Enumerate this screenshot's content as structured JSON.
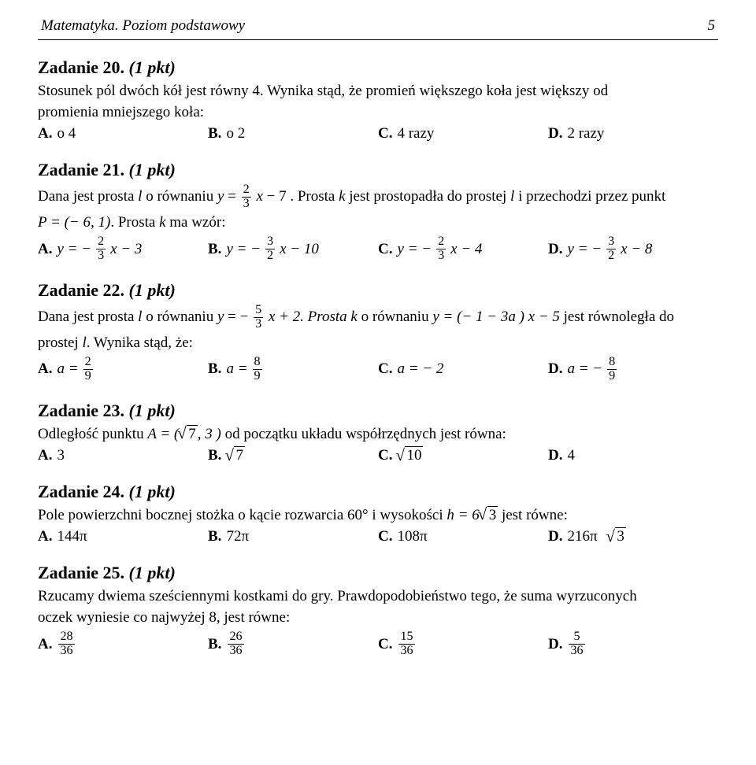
{
  "page": {
    "header_title": "Matematyka. Poziom podstawowy",
    "page_number": "5"
  },
  "tasks": {
    "t20": {
      "title_prefix": "Zadanie 20.",
      "pkt": "(1 pkt)",
      "body_l1": "Stosunek pól dwóch kół jest równy 4. Wynika stąd, że promień większego koła jest większy od",
      "body_l2": "promienia mniejszego koła:",
      "optA": "o 4",
      "optB": "o 2",
      "optC": "4 razy",
      "optD": "2 razy"
    },
    "t21": {
      "title_prefix": "Zadanie 21.",
      "pkt": "(1 pkt)",
      "intro_a": "Dana jest prosta ",
      "intro_b": " o równaniu ",
      "intro_c": ". Prosta ",
      "intro_d": " jest prostopadła do prostej ",
      "intro_e": " i przechodzi przez punkt",
      "pline_a": ". Prosta ",
      "pline_b": " ma wzór:",
      "frac23_num": "2",
      "frac23_den": "3",
      "const7": " − 7",
      "P_label": "P = (− 6, 1)",
      "optA_lhs": "y = − ",
      "optA_n": "2",
      "optA_d": "3",
      "optA_tail": " x − 3",
      "optB_lhs": "y = − ",
      "optB_n": "3",
      "optB_d": "2",
      "optB_tail": " x − 10",
      "optC_lhs": "y = − ",
      "optC_n": "2",
      "optC_d": "3",
      "optC_tail": " x − 4",
      "optD_lhs": "y = − ",
      "optD_n": "3",
      "optD_d": "2",
      "optD_tail": " x − 8"
    },
    "t22": {
      "title_prefix": "Zadanie 22.",
      "pkt": "(1 pkt)",
      "intro_a": "Dana jest prosta ",
      "intro_b": " o równaniu ",
      "fr_n": "5",
      "fr_d": "3",
      "intro_c": " x + 2. Prosta ",
      "intro_d": " o równaniu ",
      "intro_e": " jest równoległa do",
      "kexpr": "y = (− 1 − 3a ) x − 5",
      "line2_a": "prostej ",
      "line2_b": ". Wynika stąd, że:",
      "optA_lhs": "a = ",
      "optA_n": "2",
      "optA_d": "9",
      "optB_lhs": "a = ",
      "optB_n": "8",
      "optB_d": "9",
      "optC": "a = − 2",
      "optD_lhs": "a = − ",
      "optD_n": "8",
      "optD_d": "9"
    },
    "t23": {
      "title_prefix": "Zadanie 23.",
      "pkt": "(1 pkt)",
      "intro_a": "Odległość punktu ",
      "intro_b": " od początku układu współrzędnych jest równa:",
      "A_label": "A = (",
      "A_rad": "7",
      "A_tail": ", 3 )",
      "optA": "3",
      "optB_rad": "7",
      "optC_rad": "10",
      "optD": "4"
    },
    "t24": {
      "title_prefix": "Zadanie 24.",
      "pkt": "(1 pkt)",
      "intro_a": "Pole powierzchni bocznej stożka o kącie rozwarcia 60° i wysokości ",
      "h_expr": "h = 6",
      "h_rad": "3",
      "intro_b": " jest równe:",
      "optA": "144π",
      "optB": "72π",
      "optC": "108π",
      "optD_val": "216π",
      "optD_rad": "3"
    },
    "t25": {
      "title_prefix": "Zadanie 25.",
      "pkt": "(1 pkt)",
      "body_l1": "Rzucamy dwiema sześciennymi kostkami do gry. Prawdopodobieństwo tego, że suma wyrzuconych",
      "body_l2": "oczek wyniesie co najwyżej 8, jest równe:",
      "optA_n": "28",
      "optA_d": "36",
      "optB_n": "26",
      "optB_d": "36",
      "optC_n": "15",
      "optC_d": "36",
      "optD_n": "5",
      "optD_d": "36"
    }
  }
}
